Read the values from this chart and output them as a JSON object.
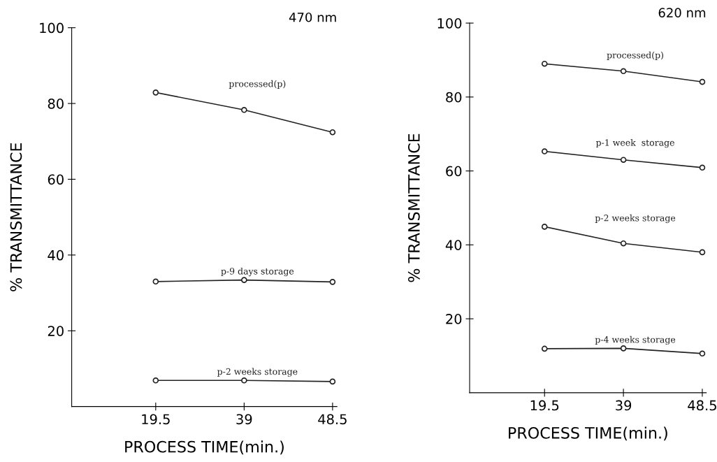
{
  "chart_data": [
    {
      "type": "line",
      "title": "470 nm",
      "xlabel": "PROCESS TIME(min.)",
      "ylabel": "% TRANSMITTANCE",
      "categories": [
        "19.5",
        "39",
        "48.5"
      ],
      "ylim": [
        0,
        100
      ],
      "yticks": [
        20,
        40,
        60,
        80,
        100
      ],
      "marker": "circle",
      "grid": false,
      "legend": false,
      "series": [
        {
          "name": "processed(p)",
          "color": "#222222",
          "values": [
            82.9,
            78.3,
            72.4
          ]
        },
        {
          "name": "p-9 days storage",
          "color": "#222222",
          "values": [
            33.0,
            33.4,
            32.9
          ]
        },
        {
          "name": "p-2 weeks storage",
          "color": "#222222",
          "values": [
            6.9,
            6.9,
            6.6
          ]
        }
      ]
    },
    {
      "type": "line",
      "title": "620 nm",
      "xlabel": "PROCESS TIME(min.)",
      "ylabel": "% TRANSMITTANCE",
      "categories": [
        "19.5",
        "39",
        "48.5"
      ],
      "ylim": [
        0,
        100
      ],
      "yticks": [
        20,
        40,
        60,
        80,
        100
      ],
      "marker": "circle",
      "grid": false,
      "legend": false,
      "series": [
        {
          "name": "processed(p)",
          "color": "#222222",
          "values": [
            89.0,
            87.0,
            84.1
          ]
        },
        {
          "name": "p-1 week  storage",
          "color": "#222222",
          "values": [
            65.3,
            63.0,
            60.9
          ]
        },
        {
          "name": "p-2 weeks storage",
          "color": "#222222",
          "values": [
            44.9,
            40.4,
            38.0
          ]
        },
        {
          "name": "p-4 weeks storage",
          "color": "#222222",
          "values": [
            11.9,
            12.0,
            10.6
          ]
        }
      ]
    }
  ]
}
